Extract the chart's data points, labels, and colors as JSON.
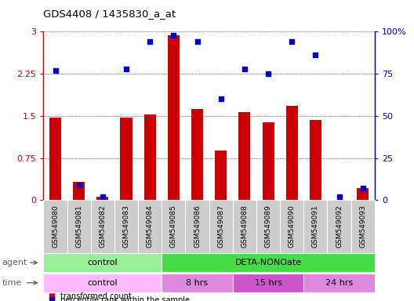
{
  "title": "GDS4408 / 1435830_a_at",
  "samples": [
    "GSM549080",
    "GSM549081",
    "GSM549082",
    "GSM549083",
    "GSM549084",
    "GSM549085",
    "GSM549086",
    "GSM549087",
    "GSM549088",
    "GSM549089",
    "GSM549090",
    "GSM549091",
    "GSM549092",
    "GSM549093"
  ],
  "bar_values": [
    1.47,
    0.32,
    0.06,
    1.47,
    1.52,
    2.93,
    1.62,
    0.88,
    1.57,
    1.38,
    1.68,
    1.43,
    0.0,
    0.22
  ],
  "scatter_values_pct": [
    77,
    9,
    2,
    78,
    94,
    98,
    94,
    60,
    78,
    75,
    94,
    86,
    2,
    7
  ],
  "bar_color": "#cc0000",
  "scatter_color": "#0000cc",
  "ylim_left": [
    0,
    3
  ],
  "ylim_right": [
    0,
    100
  ],
  "yticks_left": [
    0,
    0.75,
    1.5,
    2.25,
    3
  ],
  "ytick_labels_left": [
    "0",
    "0.75",
    "1.5",
    "2.25",
    "3"
  ],
  "yticks_right": [
    0,
    25,
    50,
    75,
    100
  ],
  "ytick_labels_right": [
    "0",
    "25",
    "50",
    "75",
    "100%"
  ],
  "agent_groups": [
    {
      "label": "control",
      "start": 0,
      "end": 5,
      "color": "#99ee99"
    },
    {
      "label": "DETA-NONOate",
      "start": 5,
      "end": 14,
      "color": "#44dd44"
    }
  ],
  "time_groups": [
    {
      "label": "control",
      "start": 0,
      "end": 5,
      "color": "#ffbbff"
    },
    {
      "label": "8 hrs",
      "start": 5,
      "end": 8,
      "color": "#dd88dd"
    },
    {
      "label": "15 hrs",
      "start": 8,
      "end": 11,
      "color": "#cc55cc"
    },
    {
      "label": "24 hrs",
      "start": 11,
      "end": 14,
      "color": "#dd88dd"
    }
  ],
  "legend_items": [
    {
      "label": "transformed count",
      "color": "#cc0000"
    },
    {
      "label": "percentile rank within the sample",
      "color": "#0000cc"
    }
  ],
  "bar_width": 0.5,
  "left_color": "#cc0000",
  "right_color": "#0000cc",
  "tick_label_bg": "#cccccc",
  "border_color": "#888888"
}
